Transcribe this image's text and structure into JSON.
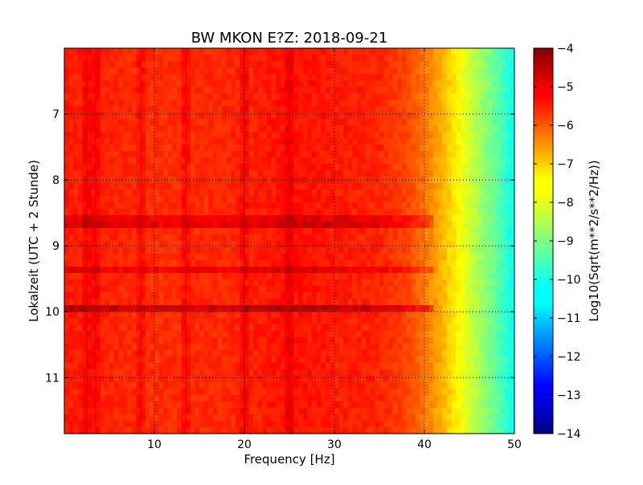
{
  "chart_data": {
    "type": "heatmap",
    "title": "BW MKON E?Z: 2018-09-21",
    "xlabel": "Frequency [Hz]",
    "ylabel": "Lokalzeit (UTC + 2 Stunde)",
    "xlim": [
      0,
      50
    ],
    "ylim": [
      11.85,
      6.0
    ],
    "xticks": [
      10,
      20,
      30,
      40,
      50
    ],
    "xtick_labels": [
      "10",
      "20",
      "30",
      "40",
      "50"
    ],
    "yticks": [
      7,
      8,
      9,
      10,
      11
    ],
    "ytick_labels": [
      "7",
      "8",
      "9",
      "10",
      "11"
    ],
    "grid": true,
    "colormap": "jet",
    "colorbar": {
      "label": "Log10(Sqrt(m**2/s**2/Hz))",
      "min": -14,
      "max": -4,
      "ticks": [
        -4,
        -5,
        -6,
        -7,
        -8,
        -9,
        -10,
        -11,
        -12,
        -13,
        -14
      ],
      "tick_labels": [
        "−4",
        "−5",
        "−6",
        "−7",
        "−8",
        "−9",
        "−10",
        "−11",
        "−12",
        "−13",
        "−14"
      ]
    },
    "spectral_profile": {
      "frequency_hz": [
        0,
        5,
        10,
        20,
        25,
        30,
        35,
        38,
        40,
        42,
        44,
        46,
        48,
        50
      ],
      "level": [
        -5.5,
        -5.6,
        -5.7,
        -5.6,
        -5.4,
        -5.5,
        -5.6,
        -5.9,
        -6.4,
        -7.0,
        -7.8,
        -8.6,
        -9.3,
        -10.2
      ]
    },
    "horizontal_bands": [
      {
        "time": 8.6,
        "level": -5.0
      },
      {
        "time": 8.7,
        "level": -4.8
      },
      {
        "time": 9.38,
        "level": -5.0
      },
      {
        "time": 9.93,
        "level": -4.5
      }
    ],
    "vertical_lines_hz": [
      2.5,
      3.5,
      8.5,
      13.5,
      20.0,
      25.0
    ]
  }
}
